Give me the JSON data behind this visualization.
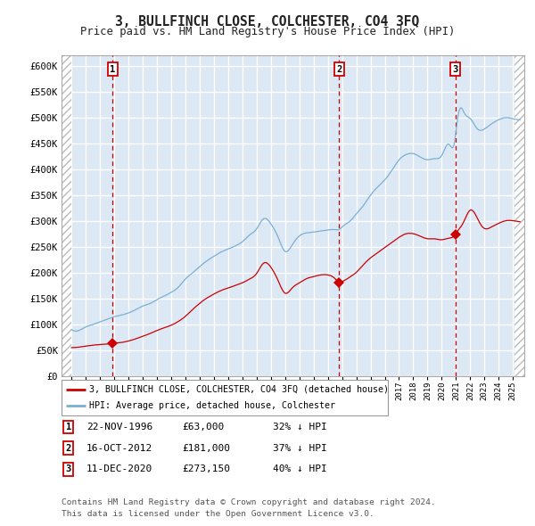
{
  "title": "3, BULLFINCH CLOSE, COLCHESTER, CO4 3FQ",
  "subtitle": "Price paid vs. HM Land Registry's House Price Index (HPI)",
  "bg_color": "#dde8f5",
  "fig_bg_color": "#ffffff",
  "grid_color": "#ffffff",
  "hpi_color": "#7ab0d4",
  "price_color": "#cc0000",
  "dashed_line_color": "#cc0000",
  "ylim": [
    0,
    620000
  ],
  "yticks": [
    0,
    50000,
    100000,
    150000,
    200000,
    250000,
    300000,
    350000,
    400000,
    450000,
    500000,
    550000,
    600000
  ],
  "ytick_labels": [
    "£0",
    "£50K",
    "£100K",
    "£150K",
    "£200K",
    "£250K",
    "£300K",
    "£350K",
    "£400K",
    "£450K",
    "£500K",
    "£550K",
    "£600K"
  ],
  "sale_dates": [
    1996.9,
    2012.79,
    2020.96
  ],
  "sale_prices": [
    63000,
    181000,
    273150
  ],
  "sale_labels": [
    "1",
    "2",
    "3"
  ],
  "legend_entries": [
    "3, BULLFINCH CLOSE, COLCHESTER, CO4 3FQ (detached house)",
    "HPI: Average price, detached house, Colchester"
  ],
  "table_rows": [
    [
      "1",
      "22-NOV-1996",
      "£63,000",
      "32% ↓ HPI"
    ],
    [
      "2",
      "16-OCT-2012",
      "£181,000",
      "37% ↓ HPI"
    ],
    [
      "3",
      "11-DEC-2020",
      "£273,150",
      "40% ↓ HPI"
    ]
  ],
  "footnote1": "Contains HM Land Registry data © Crown copyright and database right 2024.",
  "footnote2": "This data is licensed under the Open Government Licence v3.0."
}
